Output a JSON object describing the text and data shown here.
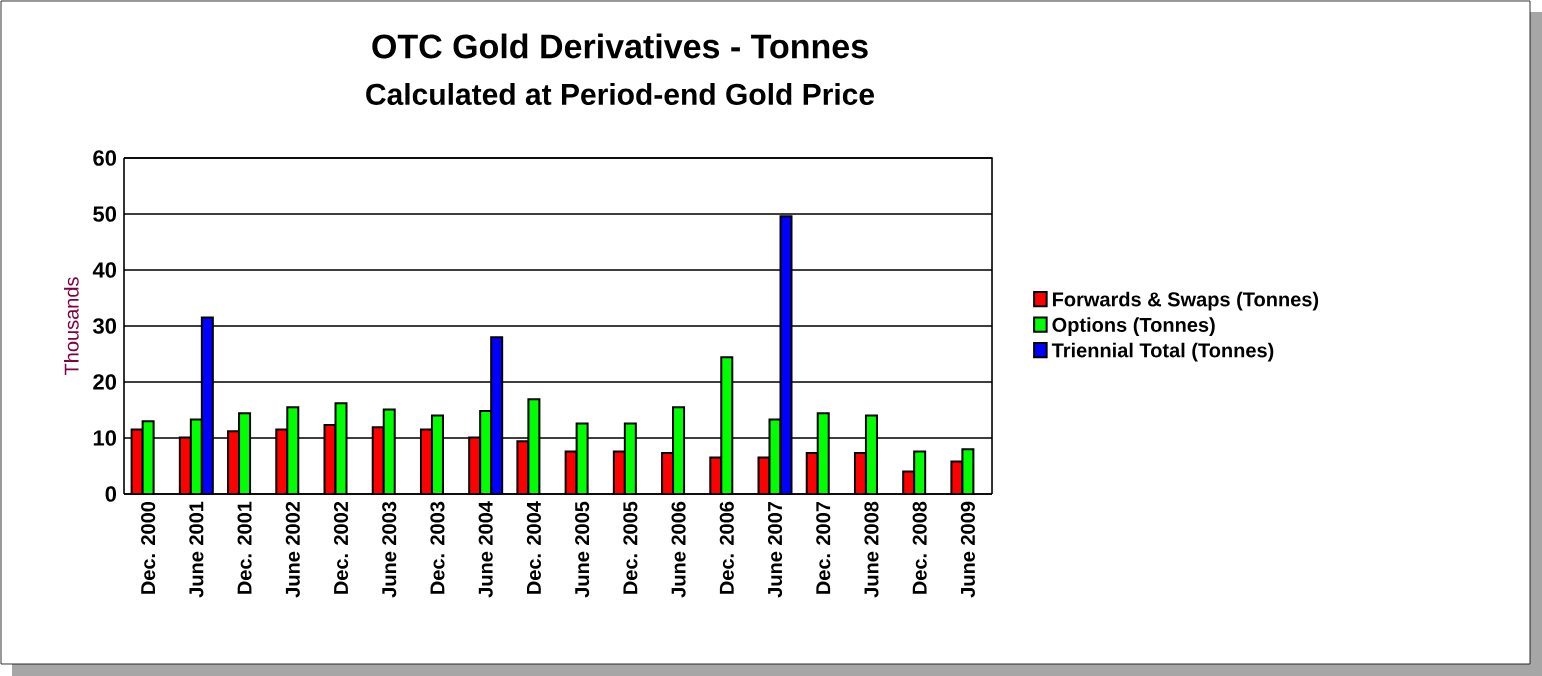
{
  "chart_data": {
    "type": "bar",
    "title": "OTC Gold Derivatives - Tonnes",
    "subtitle": "Calculated at Period-end Gold Price",
    "ylabel": "Thousands",
    "categories": [
      "Dec. 2000",
      "June 2001",
      "Dec. 2001",
      "June 2002",
      "Dec. 2002",
      "June 2003",
      "Dec. 2003",
      "June 2004",
      "Dec. 2004",
      "June 2005",
      "Dec. 2005",
      "June 2006",
      "Dec. 2006",
      "June 2007",
      "Dec. 2007",
      "June 2008",
      "Dec. 2008",
      "June 2009"
    ],
    "series": [
      {
        "name": "Forwards & Swaps (Tonnes)",
        "color": "#ff0000",
        "values": [
          11.5,
          10.1,
          11.2,
          11.5,
          12.3,
          11.9,
          11.5,
          10.1,
          9.4,
          7.6,
          7.6,
          7.3,
          6.5,
          6.5,
          7.3,
          7.3,
          4.0,
          5.8
        ]
      },
      {
        "name": "Options (Tonnes)",
        "color": "#00ff00",
        "values": [
          13.0,
          13.3,
          14.4,
          15.5,
          16.2,
          15.1,
          14.0,
          14.8,
          16.9,
          12.6,
          12.6,
          15.5,
          24.4,
          13.3,
          14.4,
          14.0,
          7.6,
          8.0
        ]
      },
      {
        "name": "Triennial Total (Tonnes)",
        "color": "#0000ff",
        "values": [
          null,
          31.5,
          null,
          null,
          null,
          null,
          null,
          28.0,
          null,
          null,
          null,
          null,
          null,
          49.6,
          null,
          null,
          null,
          null
        ]
      }
    ],
    "ylim": [
      0,
      60
    ],
    "yticks": [
      0,
      10,
      20,
      30,
      40,
      50,
      60
    ],
    "grid": "y",
    "legend": "right"
  }
}
